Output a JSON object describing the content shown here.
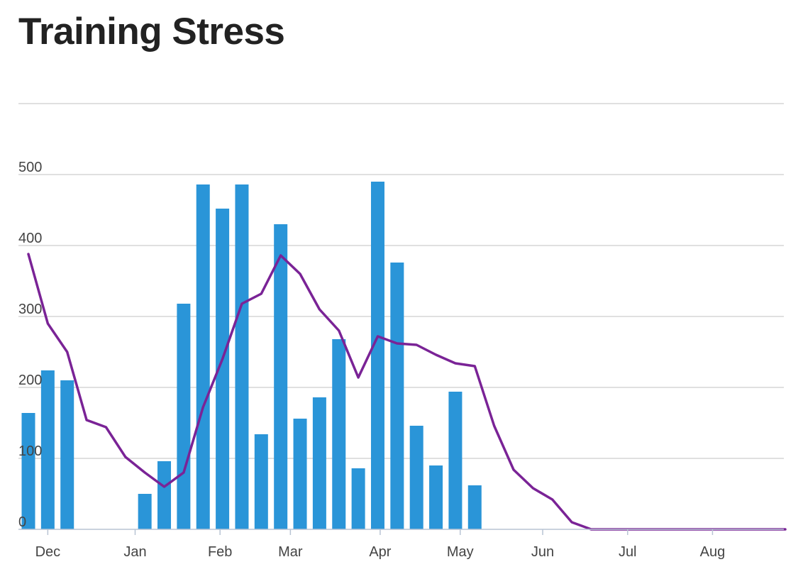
{
  "page": {
    "title": "Training Stress"
  },
  "chart_data": {
    "type": "bar",
    "title": "Training Stress",
    "xlabel": "",
    "ylabel": "",
    "ylim": [
      0,
      600
    ],
    "y_ticks": [
      0,
      100,
      200,
      300,
      400,
      500
    ],
    "x_tick_labels": [
      "Dec",
      "Jan",
      "Feb",
      "Mar",
      "Apr",
      "May",
      "Jun",
      "Jul",
      "Aug"
    ],
    "x_tick_weeks": [
      4,
      22,
      39.5,
      54,
      72.5,
      89,
      106,
      123.5,
      141
    ],
    "grid": true,
    "legend": "none",
    "colors": {
      "bars": "#2a95d8",
      "line": "#7a2396",
      "grid": "#d6d6d6",
      "axis": "#b8c4d4"
    },
    "series": [
      {
        "type": "bar",
        "weeks": [
          0,
          4,
          8,
          24,
          28,
          32,
          36,
          40,
          44,
          48,
          52,
          56,
          60,
          64,
          68,
          72,
          76,
          80,
          84,
          88,
          92
        ],
        "values": [
          164,
          224,
          210,
          50,
          96,
          318,
          486,
          452,
          486,
          134,
          430,
          156,
          186,
          268,
          86,
          490,
          376,
          146,
          90,
          194,
          62
        ]
      },
      {
        "type": "line",
        "weeks": [
          0,
          4,
          8,
          12,
          16,
          20,
          24,
          28,
          32,
          36,
          40,
          44,
          48,
          52,
          56,
          60,
          64,
          68,
          72,
          76,
          80,
          84,
          88,
          92,
          96,
          100,
          104,
          108,
          112,
          116,
          120,
          124,
          128,
          132,
          136,
          140,
          144,
          148,
          152,
          156
        ],
        "values": [
          388,
          290,
          250,
          154,
          144,
          102,
          80,
          60,
          80,
          172,
          240,
          318,
          332,
          386,
          360,
          310,
          280,
          214,
          272,
          262,
          260,
          246,
          234,
          230,
          146,
          84,
          58,
          42,
          10,
          0,
          0,
          0,
          0,
          0,
          0,
          0,
          0,
          0,
          0,
          0
        ]
      }
    ]
  }
}
